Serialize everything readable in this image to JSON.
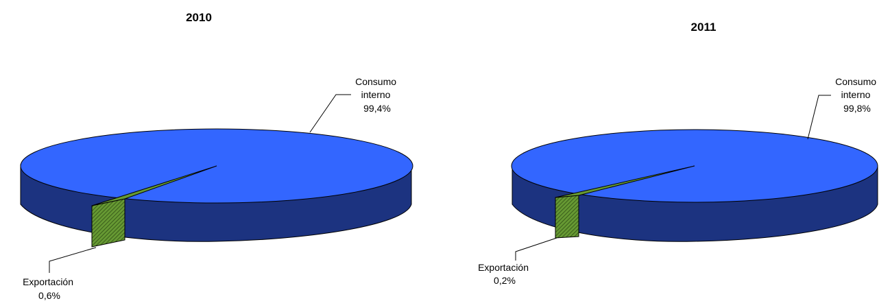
{
  "chart_data": [
    {
      "type": "pie",
      "title": "2010",
      "categories": [
        "Consumo interno",
        "Exportación"
      ],
      "values": [
        99.4,
        0.6
      ],
      "labels": [
        {
          "name_lines": [
            "Consumo",
            "interno"
          ],
          "value_text": "99,4%"
        },
        {
          "name_lines": [
            "Exportación"
          ],
          "value_text": "0,6%"
        }
      ],
      "colors": [
        "#3366ff",
        "#669933"
      ]
    },
    {
      "type": "pie",
      "title": "2011",
      "categories": [
        "Consumo interno",
        "Exportación"
      ],
      "values": [
        99.8,
        0.2
      ],
      "labels": [
        {
          "name_lines": [
            "Consumo",
            "interno"
          ],
          "value_text": "99,8%"
        },
        {
          "name_lines": [
            "Exportación"
          ],
          "value_text": "0,2%"
        }
      ],
      "colors": [
        "#3366ff",
        "#669933"
      ]
    }
  ]
}
